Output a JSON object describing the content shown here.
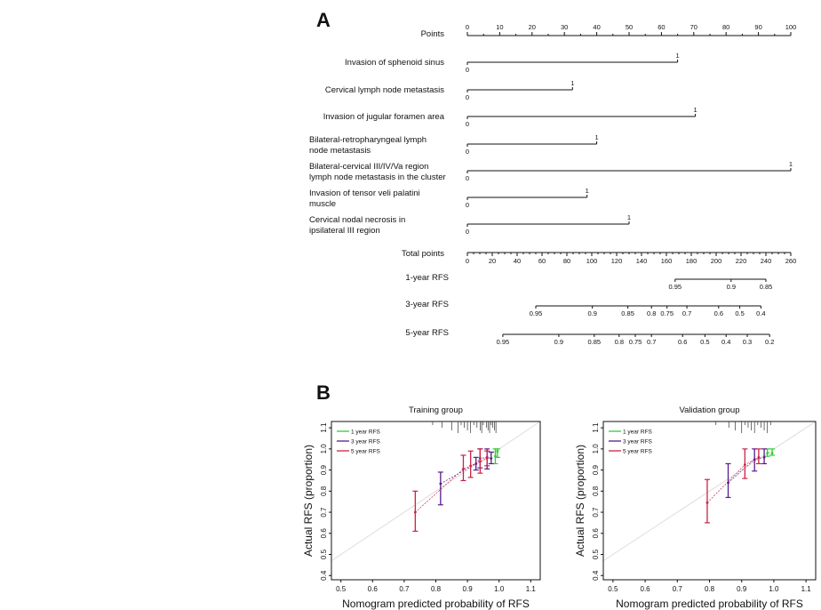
{
  "panels": {
    "a": "A",
    "b": "B"
  },
  "chart_data": [
    {
      "type": "nomogram",
      "points_scale": {
        "label": "Points",
        "range": [
          0,
          100
        ],
        "ticks": [
          0,
          10,
          20,
          30,
          40,
          50,
          60,
          70,
          80,
          90,
          100
        ]
      },
      "variables": [
        {
          "label": [
            "Invasion of sphenoid sinus"
          ],
          "levels": [
            "0",
            "1"
          ],
          "points": [
            0,
            65
          ]
        },
        {
          "label": [
            "Cervical lymph node metastasis"
          ],
          "levels": [
            "0",
            "1"
          ],
          "points": [
            0,
            32.5
          ]
        },
        {
          "label": [
            "Invasion of jugular foramen area"
          ],
          "levels": [
            "0",
            "1"
          ],
          "points": [
            0,
            70.5
          ]
        },
        {
          "label": [
            "Bilateral-retropharyngeal lymph",
            "node metastasis"
          ],
          "levels": [
            "0",
            "1"
          ],
          "points": [
            0,
            40
          ]
        },
        {
          "label": [
            "Bilateral-cervical III/IV/Va  region",
            "lymph node metastasis in the cluster"
          ],
          "levels": [
            "0",
            "1"
          ],
          "points": [
            0,
            100
          ]
        },
        {
          "label": [
            "Invasion of tensor veli palatini",
            "muscle"
          ],
          "levels": [
            "0",
            "1"
          ],
          "points": [
            0,
            37
          ]
        },
        {
          "label": [
            "Cervical nodal necrosis in",
            "ipsilateral III region"
          ],
          "levels": [
            "0",
            "1"
          ],
          "points": [
            0,
            50
          ]
        }
      ],
      "total_points": {
        "label": "Total points",
        "range": [
          0,
          260
        ],
        "ticks": [
          0,
          20,
          40,
          60,
          80,
          100,
          120,
          140,
          160,
          180,
          200,
          220,
          240,
          260
        ]
      },
      "outcomes": [
        {
          "label": "1-year RFS",
          "ticks": [
            {
              "v": "0.95",
              "t": 167
            },
            {
              "v": "0.9",
              "t": 212
            },
            {
              "v": "0.85",
              "t": 240
            }
          ]
        },
        {
          "label": "3-year RFS",
          "ticks": [
            {
              "v": "0.95",
              "t": 55
            },
            {
              "v": "0.9",
              "t": 100.5
            },
            {
              "v": "0.85",
              "t": 129
            },
            {
              "v": "0.8",
              "t": 148
            },
            {
              "v": "0.75",
              "t": 160.5
            },
            {
              "v": "0.7",
              "t": 176.5
            },
            {
              "v": "0.6",
              "t": 202
            },
            {
              "v": "0.5",
              "t": 219
            },
            {
              "v": "0.4",
              "t": 236
            }
          ]
        },
        {
          "label": "5-year RFS",
          "ticks": [
            {
              "v": "0.95",
              "t": 28.5
            },
            {
              "v": "0.9",
              "t": 73.5
            },
            {
              "v": "0.85",
              "t": 102
            },
            {
              "v": "0.8",
              "t": 122
            },
            {
              "v": "0.75",
              "t": 135
            },
            {
              "v": "0.7",
              "t": 148
            },
            {
              "v": "0.6",
              "t": 173
            },
            {
              "v": "0.5",
              "t": 191
            },
            {
              "v": "0.4",
              "t": 208
            },
            {
              "v": "0.3",
              "t": 225
            },
            {
              "v": "0.2",
              "t": 243
            }
          ]
        }
      ]
    },
    {
      "type": "scatter",
      "title": "Training group",
      "xlabel": "Nomogram predicted probability of RFS",
      "ylabel": "Actual RFS (proportion)",
      "xlim": [
        0.47,
        1.13
      ],
      "ylim": [
        0.38,
        1.13
      ],
      "xticks": [
        "0.5",
        "0.6",
        "0.7",
        "0.8",
        "0.9",
        "1.0",
        "1.1"
      ],
      "yticks": [
        "0.4",
        "0.5",
        "0.6",
        "0.7",
        "0.8",
        "0.9",
        "1.0",
        "1.1"
      ],
      "legend": {
        "position": "top-left"
      },
      "series": [
        {
          "name": "1 year RFS",
          "color": "#33cc33",
          "points": [
            {
              "x": 0.988,
              "y": 0.965,
              "lo": 0.93,
              "hi": 1.0
            },
            {
              "x": 0.995,
              "y": 0.99,
              "lo": 0.96,
              "hi": 1.0
            }
          ]
        },
        {
          "name": "3 year RFS",
          "color": "#5a1a8a",
          "points": [
            {
              "x": 0.815,
              "y": 0.835,
              "lo": 0.735,
              "hi": 0.89
            },
            {
              "x": 0.927,
              "y": 0.93,
              "lo": 0.9,
              "hi": 0.96
            },
            {
              "x": 0.94,
              "y": 0.955,
              "lo": 0.91,
              "hi": 1.0
            },
            {
              "x": 0.962,
              "y": 0.96,
              "lo": 0.905,
              "hi": 1.0
            },
            {
              "x": 0.975,
              "y": 0.955,
              "lo": 0.93,
              "hi": 0.985
            }
          ]
        },
        {
          "name": "5 year RFS",
          "color": "#cc2244",
          "points": [
            {
              "x": 0.735,
              "y": 0.7,
              "lo": 0.61,
              "hi": 0.8
            },
            {
              "x": 0.887,
              "y": 0.905,
              "lo": 0.85,
              "hi": 0.97
            },
            {
              "x": 0.91,
              "y": 0.92,
              "lo": 0.865,
              "hi": 0.99
            },
            {
              "x": 0.94,
              "y": 0.94,
              "lo": 0.885,
              "hi": 1.0
            },
            {
              "x": 0.962,
              "y": 0.955,
              "lo": 0.92,
              "hi": 0.99
            }
          ]
        }
      ],
      "rug": [
        0.79,
        0.82,
        0.85,
        0.87,
        0.88,
        0.89,
        0.9,
        0.91,
        0.92,
        0.93,
        0.94,
        0.945,
        0.95,
        0.96,
        0.965,
        0.97,
        0.975,
        0.98,
        0.985,
        0.99
      ]
    },
    {
      "type": "scatter",
      "title": "Validation group",
      "xlabel": "Nomogram predicted probability of RFS",
      "ylabel": "Actual RFS (proportion)",
      "xlim": [
        0.47,
        1.13
      ],
      "ylim": [
        0.38,
        1.13
      ],
      "xticks": [
        "0.5",
        "0.6",
        "0.7",
        "0.8",
        "0.9",
        "1.0",
        "1.1"
      ],
      "yticks": [
        "0.4",
        "0.5",
        "0.6",
        "0.7",
        "0.8",
        "0.9",
        "1.0",
        "1.1"
      ],
      "legend": {
        "position": "top-left"
      },
      "series": [
        {
          "name": "1 year RFS",
          "color": "#33cc33",
          "points": [
            {
              "x": 0.98,
              "y": 0.98,
              "lo": 0.965,
              "hi": 1.0
            },
            {
              "x": 0.995,
              "y": 0.98,
              "lo": 0.97,
              "hi": 1.0
            }
          ]
        },
        {
          "name": "3 year RFS",
          "color": "#5a1a8a",
          "points": [
            {
              "x": 0.858,
              "y": 0.84,
              "lo": 0.77,
              "hi": 0.93
            },
            {
              "x": 0.94,
              "y": 0.95,
              "lo": 0.895,
              "hi": 1.0
            },
            {
              "x": 0.97,
              "y": 0.96,
              "lo": 0.93,
              "hi": 1.0
            }
          ]
        },
        {
          "name": "5 year RFS",
          "color": "#cc2244",
          "points": [
            {
              "x": 0.793,
              "y": 0.745,
              "lo": 0.65,
              "hi": 0.855
            },
            {
              "x": 0.91,
              "y": 0.925,
              "lo": 0.86,
              "hi": 1.0
            },
            {
              "x": 0.953,
              "y": 0.96,
              "lo": 0.93,
              "hi": 1.0
            }
          ]
        }
      ],
      "rug": [
        0.82,
        0.86,
        0.88,
        0.9,
        0.91,
        0.92,
        0.93,
        0.94,
        0.95,
        0.96,
        0.97,
        0.98,
        0.99
      ]
    }
  ]
}
